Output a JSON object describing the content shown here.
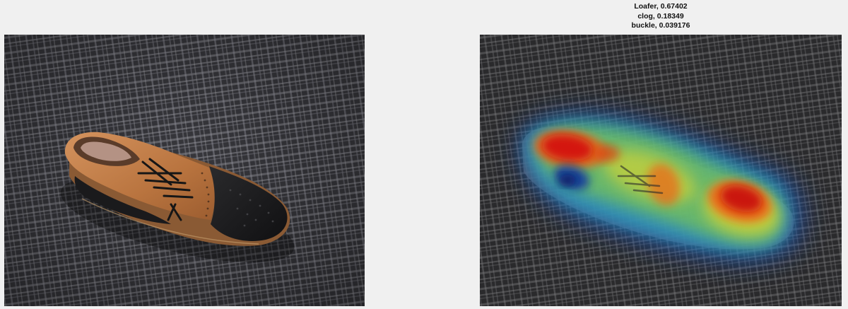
{
  "figure": {
    "left_panel": {
      "subject": "photo of a brown and black brogue oxford shoe on a grey plaid carpet"
    },
    "right_panel": {
      "subject": "same photo in greyscale with a class-activation heatmap overlay",
      "predictions": [
        {
          "label": "Loafer",
          "score": "0.67402",
          "text": "Loafer, 0.67402"
        },
        {
          "label": "clog",
          "score": "0.18349",
          "text": "clog, 0.18349"
        },
        {
          "label": "buckle",
          "score": "0.039176",
          "text": "buckle, 0.039176"
        }
      ]
    }
  },
  "colors": {
    "figure_background": "#f0f0f0",
    "carpet_dark": "#3a3a3e",
    "shoe_tan": "#c68352",
    "shoe_black": "#1c1c1e",
    "heat_hot": "#d41010",
    "heat_cool": "#1e64c8"
  }
}
